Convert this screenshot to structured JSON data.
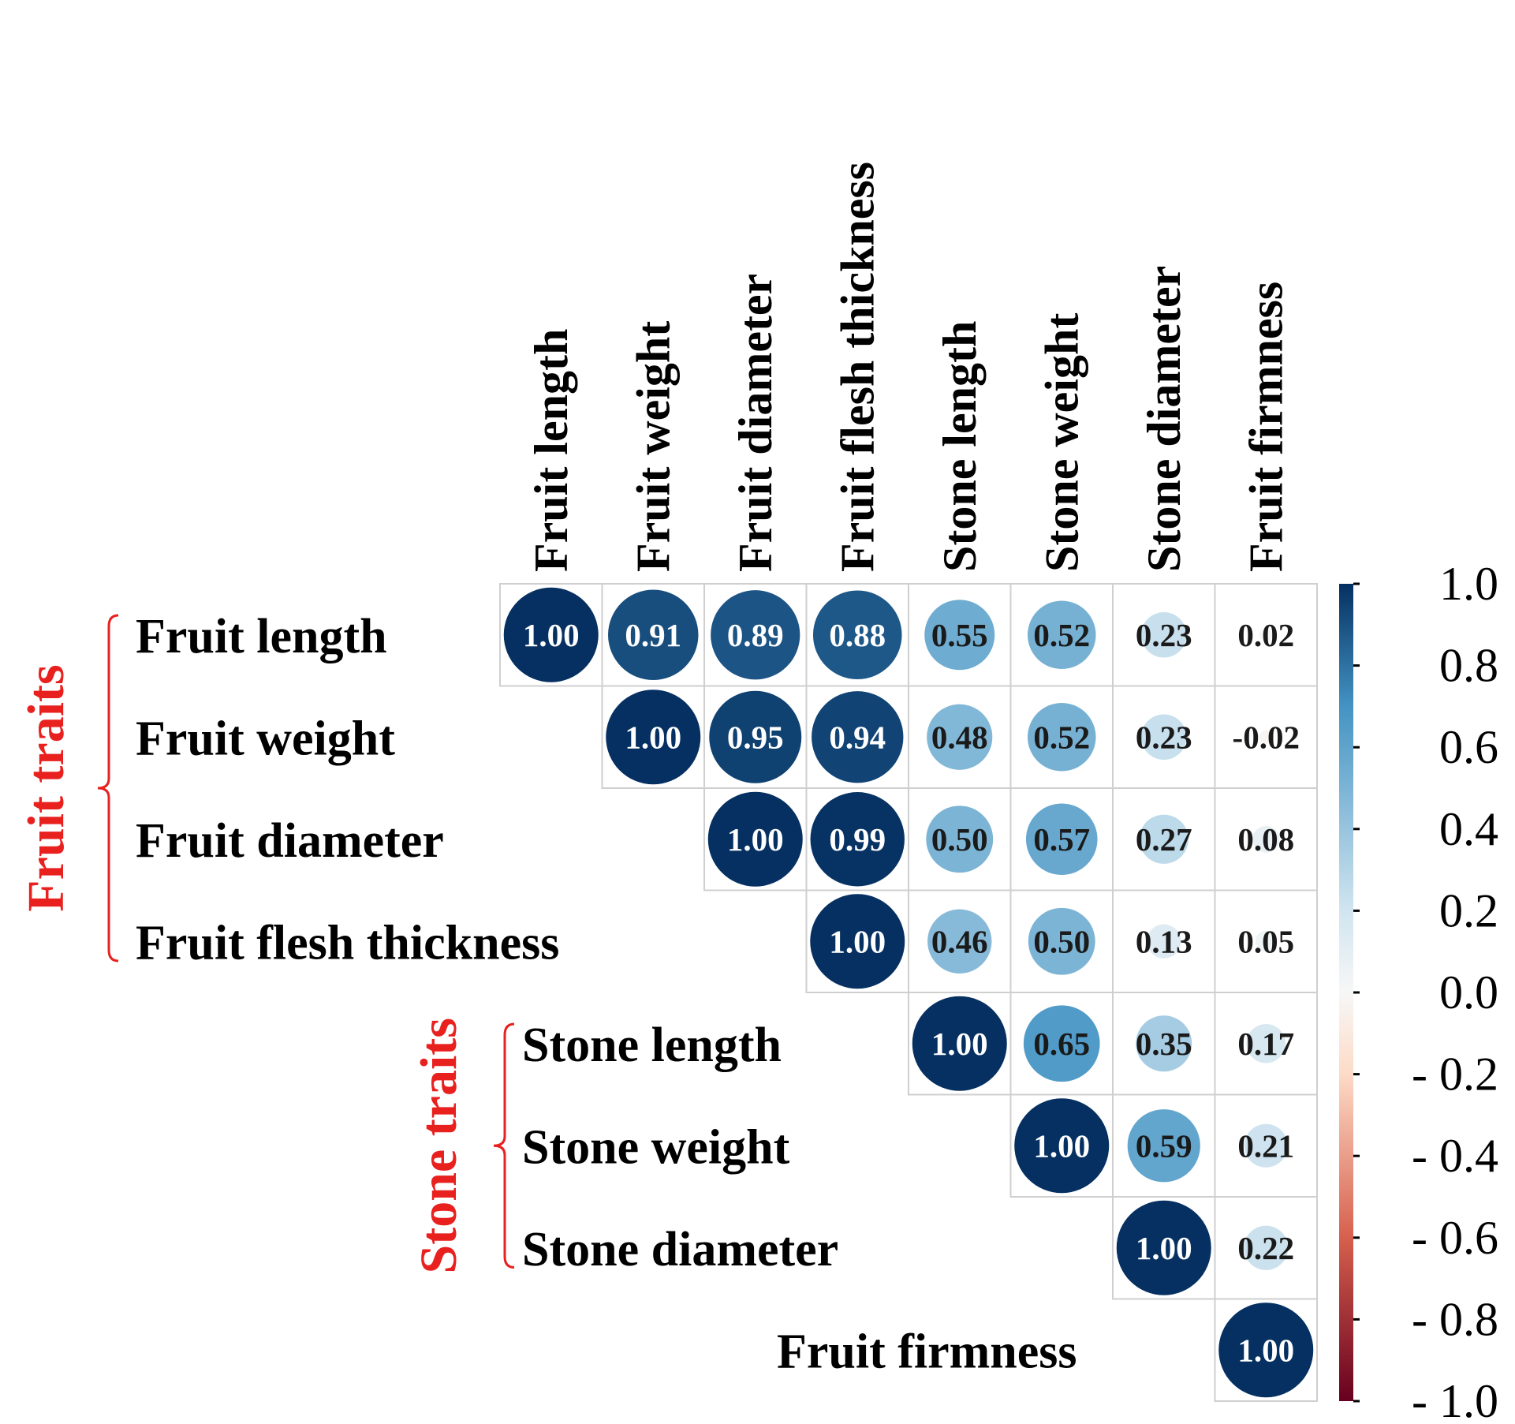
{
  "chart_data": {
    "type": "heatmap",
    "subtype": "correlation-upper-triangle-circles",
    "variables": [
      "Fruit length",
      "Fruit weight",
      "Fruit diameter",
      "Fruit flesh thickness",
      "Stone length",
      "Stone weight",
      "Stone diameter",
      "Fruit firmness"
    ],
    "matrix": [
      [
        1.0,
        0.91,
        0.89,
        0.88,
        0.55,
        0.52,
        0.23,
        0.02
      ],
      [
        null,
        1.0,
        0.95,
        0.94,
        0.48,
        0.52,
        0.23,
        -0.02
      ],
      [
        null,
        null,
        1.0,
        0.99,
        0.5,
        0.57,
        0.27,
        0.08
      ],
      [
        null,
        null,
        null,
        1.0,
        0.46,
        0.5,
        0.13,
        0.05
      ],
      [
        null,
        null,
        null,
        null,
        1.0,
        0.65,
        0.35,
        0.17
      ],
      [
        null,
        null,
        null,
        null,
        null,
        1.0,
        0.59,
        0.21
      ],
      [
        null,
        null,
        null,
        null,
        null,
        null,
        1.0,
        0.22
      ],
      [
        null,
        null,
        null,
        null,
        null,
        null,
        null,
        1.0
      ]
    ],
    "groups": [
      {
        "label": "Fruit traits",
        "start": 0,
        "end": 3,
        "color": "#e8211f"
      },
      {
        "label": "Stone traits",
        "start": 4,
        "end": 6,
        "color": "#e8211f"
      }
    ],
    "colorbar": {
      "range": [
        -1.0,
        1.0
      ],
      "tick_labels": [
        "1.0",
        "0.8",
        "0.6",
        "0.4",
        "0.2",
        "0.0",
        "- 0.2",
        "- 0.4",
        "- 0.6",
        "- 0.8",
        "- 1.0"
      ],
      "tick_values": [
        1.0,
        0.8,
        0.6,
        0.4,
        0.2,
        0.0,
        -0.2,
        -0.4,
        -0.6,
        -0.8,
        -1.0
      ],
      "colors": {
        "neg_end": "#67001f",
        "neg_mid": "#d6604d",
        "neg_light": "#fddbc7",
        "zero": "#f7f7f7",
        "pos_light": "#d1e5f0",
        "pos_mid": "#4393c3",
        "pos_end": "#053061"
      }
    }
  }
}
